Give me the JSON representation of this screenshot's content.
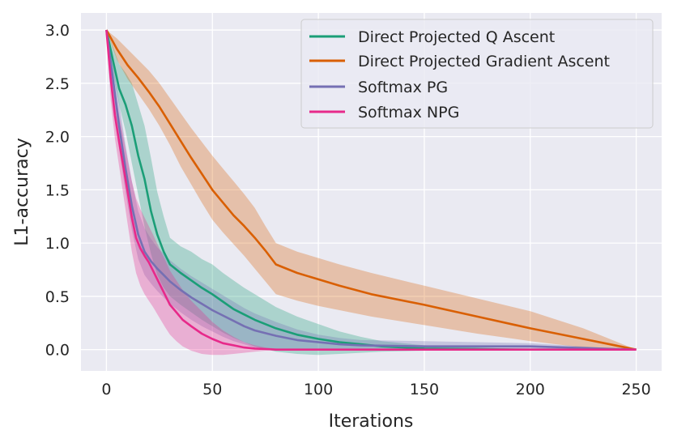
{
  "chart_data": {
    "type": "line",
    "title": "",
    "xlabel": "Iterations",
    "ylabel": "L1-accuracy",
    "xlim": [
      -12,
      262
    ],
    "ylim": [
      -0.2,
      3.16
    ],
    "xticks": [
      0,
      50,
      100,
      150,
      200,
      250
    ],
    "yticks": [
      0.0,
      0.5,
      1.0,
      1.5,
      2.0,
      2.5,
      3.0
    ],
    "xtick_labels": [
      "0",
      "50",
      "100",
      "150",
      "200",
      "250"
    ],
    "ytick_labels": [
      "0.0",
      "0.5",
      "1.0",
      "1.5",
      "2.0",
      "2.5",
      "3.0"
    ],
    "grid": true,
    "legend_position": "top-right",
    "series": [
      {
        "name": "Direct Projected Q Ascent",
        "color": "#1b9e77",
        "x": [
          0,
          3,
          6,
          9,
          12,
          15,
          18,
          21,
          24,
          27,
          30,
          35,
          40,
          45,
          50,
          55,
          60,
          65,
          70,
          80,
          90,
          100,
          110,
          120,
          130,
          150,
          175,
          200,
          250
        ],
        "y": [
          3.0,
          2.72,
          2.45,
          2.3,
          2.1,
          1.82,
          1.6,
          1.3,
          1.08,
          0.92,
          0.8,
          0.72,
          0.65,
          0.58,
          0.52,
          0.45,
          0.38,
          0.33,
          0.28,
          0.2,
          0.14,
          0.1,
          0.07,
          0.05,
          0.03,
          0.01,
          0.005,
          0.0,
          0.0
        ],
        "lower": [
          2.95,
          2.6,
          2.3,
          2.05,
          1.75,
          1.45,
          1.15,
          0.9,
          0.7,
          0.58,
          0.5,
          0.42,
          0.35,
          0.28,
          0.22,
          0.16,
          0.11,
          0.07,
          0.03,
          -0.02,
          -0.04,
          -0.05,
          -0.04,
          -0.03,
          -0.02,
          -0.01,
          -0.005,
          0.0,
          0.0
        ],
        "upper": [
          3.0,
          2.85,
          2.68,
          2.6,
          2.5,
          2.3,
          2.1,
          1.8,
          1.48,
          1.25,
          1.05,
          0.97,
          0.92,
          0.85,
          0.8,
          0.72,
          0.65,
          0.58,
          0.52,
          0.4,
          0.31,
          0.24,
          0.17,
          0.12,
          0.08,
          0.04,
          0.02,
          0.005,
          0.0
        ]
      },
      {
        "name": "Direct Projected Gradient Ascent",
        "color": "#d95f02",
        "x": [
          0,
          5,
          10,
          15,
          20,
          25,
          30,
          35,
          40,
          45,
          50,
          55,
          60,
          65,
          70,
          75,
          80,
          90,
          100,
          110,
          125,
          150,
          175,
          200,
          225,
          250
        ],
        "y": [
          3.0,
          2.82,
          2.67,
          2.55,
          2.42,
          2.28,
          2.12,
          1.96,
          1.8,
          1.65,
          1.5,
          1.38,
          1.26,
          1.16,
          1.05,
          0.93,
          0.8,
          0.72,
          0.66,
          0.6,
          0.52,
          0.42,
          0.31,
          0.2,
          0.1,
          0.0
        ],
        "lower": [
          3.0,
          2.72,
          2.54,
          2.4,
          2.26,
          2.1,
          1.92,
          1.72,
          1.55,
          1.38,
          1.22,
          1.1,
          0.99,
          0.88,
          0.76,
          0.64,
          0.52,
          0.46,
          0.41,
          0.37,
          0.31,
          0.23,
          0.15,
          0.08,
          0.02,
          0.0
        ],
        "upper": [
          3.0,
          2.92,
          2.82,
          2.72,
          2.62,
          2.5,
          2.36,
          2.22,
          2.08,
          1.95,
          1.82,
          1.7,
          1.58,
          1.46,
          1.33,
          1.16,
          1.0,
          0.92,
          0.86,
          0.8,
          0.72,
          0.6,
          0.48,
          0.36,
          0.2,
          0.0
        ]
      },
      {
        "name": "Softmax PG",
        "color": "#7570b3",
        "x": [
          0,
          3,
          6,
          9,
          12,
          15,
          18,
          21,
          24,
          27,
          30,
          35,
          40,
          45,
          50,
          55,
          60,
          65,
          70,
          80,
          90,
          100,
          110,
          120,
          150,
          200,
          250
        ],
        "y": [
          3.0,
          2.55,
          2.1,
          1.7,
          1.35,
          1.08,
          0.92,
          0.83,
          0.76,
          0.7,
          0.64,
          0.56,
          0.49,
          0.43,
          0.37,
          0.32,
          0.27,
          0.22,
          0.18,
          0.13,
          0.09,
          0.07,
          0.05,
          0.04,
          0.03,
          0.03,
          0.0
        ],
        "lower": [
          2.95,
          2.38,
          1.88,
          1.48,
          1.12,
          0.85,
          0.7,
          0.62,
          0.55,
          0.49,
          0.43,
          0.35,
          0.28,
          0.22,
          0.17,
          0.12,
          0.08,
          0.05,
          0.02,
          0.0,
          0.0,
          0.0,
          -0.01,
          -0.01,
          -0.01,
          -0.005,
          0.0
        ],
        "upper": [
          3.0,
          2.7,
          2.32,
          1.92,
          1.58,
          1.3,
          1.14,
          1.04,
          0.96,
          0.9,
          0.84,
          0.76,
          0.69,
          0.63,
          0.57,
          0.51,
          0.45,
          0.39,
          0.34,
          0.26,
          0.19,
          0.14,
          0.11,
          0.09,
          0.08,
          0.06,
          0.0
        ]
      },
      {
        "name": "Softmax NPG",
        "color": "#e7298a",
        "x": [
          0,
          2,
          4,
          6,
          8,
          10,
          12,
          14,
          16,
          18,
          20,
          22,
          25,
          28,
          30,
          33,
          36,
          40,
          45,
          50,
          55,
          60,
          65,
          70,
          75,
          80,
          90,
          100,
          150,
          200,
          250
        ],
        "y": [
          3.0,
          2.55,
          2.2,
          1.95,
          1.72,
          1.48,
          1.24,
          1.05,
          0.95,
          0.88,
          0.82,
          0.74,
          0.62,
          0.5,
          0.42,
          0.35,
          0.28,
          0.22,
          0.15,
          0.1,
          0.06,
          0.04,
          0.02,
          0.01,
          0.005,
          0.0,
          0.0,
          0.0,
          0.0,
          0.0,
          0.0
        ],
        "lower": [
          2.95,
          2.35,
          1.98,
          1.72,
          1.45,
          1.18,
          0.92,
          0.72,
          0.6,
          0.52,
          0.46,
          0.4,
          0.3,
          0.2,
          0.14,
          0.08,
          0.03,
          -0.01,
          -0.04,
          -0.05,
          -0.05,
          -0.04,
          -0.03,
          -0.02,
          -0.01,
          0.0,
          0.0,
          0.0,
          0.0,
          0.0,
          0.0
        ],
        "upper": [
          3.0,
          2.75,
          2.45,
          2.2,
          2.0,
          1.78,
          1.58,
          1.42,
          1.32,
          1.24,
          1.16,
          1.08,
          0.95,
          0.83,
          0.74,
          0.65,
          0.56,
          0.46,
          0.36,
          0.26,
          0.18,
          0.12,
          0.07,
          0.04,
          0.02,
          0.01,
          0.0,
          0.0,
          0.0,
          0.0,
          0.0
        ]
      }
    ]
  }
}
